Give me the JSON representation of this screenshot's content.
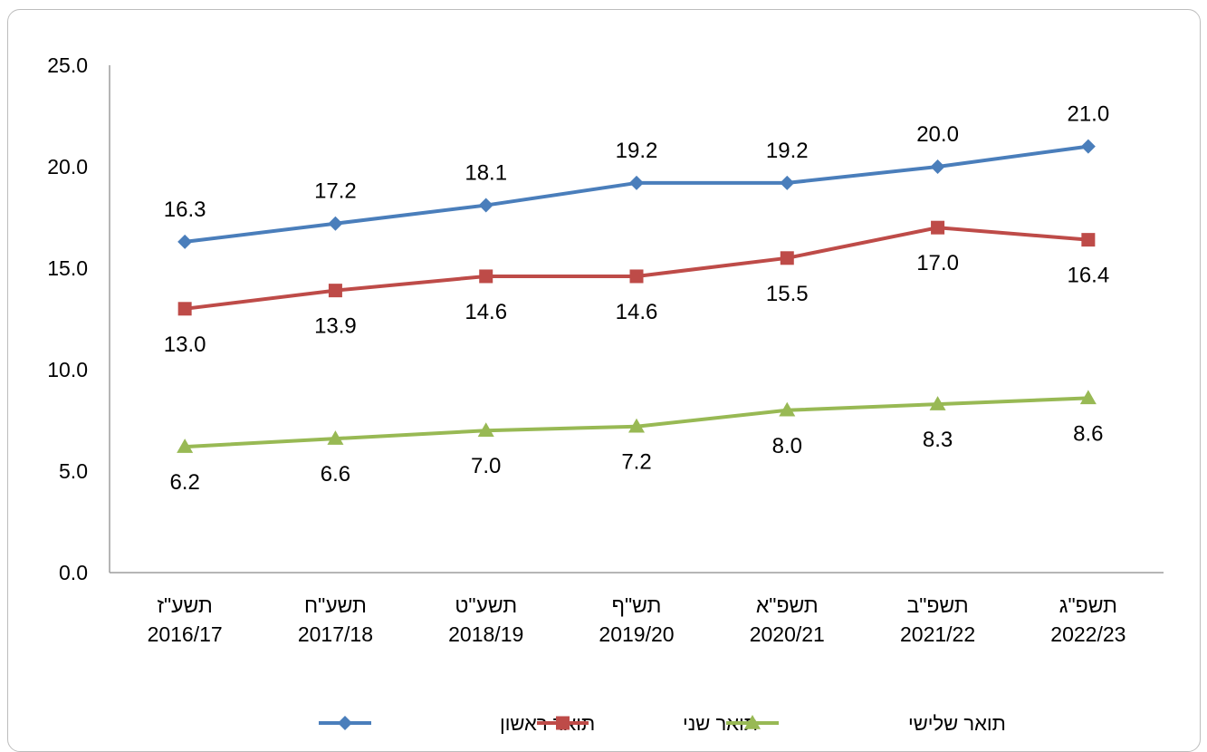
{
  "chart_data": {
    "type": "line",
    "categories": [
      {
        "hebrew": "תשע\"ז",
        "years": "2016/17"
      },
      {
        "hebrew": "תשע\"ח",
        "years": "2017/18"
      },
      {
        "hebrew": "תשע\"ט",
        "years": "2018/19"
      },
      {
        "hebrew": "תש\"ף",
        "years": "2019/20"
      },
      {
        "hebrew": "תשפ\"א",
        "years": "2020/21"
      },
      {
        "hebrew": "תשפ\"ב",
        "years": "2021/22"
      },
      {
        "hebrew": "תשפ\"ג",
        "years": "2022/23"
      }
    ],
    "ylim": [
      0,
      25
    ],
    "yticks": [
      "0.0",
      "5.0",
      "10.0",
      "15.0",
      "20.0",
      "25.0"
    ],
    "grid": false,
    "legend_position": "bottom",
    "series": [
      {
        "name": "תואר ראשון",
        "color": "#4a7ebb",
        "marker": "diamond",
        "label_position": "above",
        "values": [
          16.3,
          17.2,
          18.1,
          19.2,
          19.2,
          20.0,
          21.0
        ],
        "labels": [
          "16.3",
          "17.2",
          "18.1",
          "19.2",
          "19.2",
          "20.0",
          "21.0"
        ]
      },
      {
        "name": "תואר שני",
        "color": "#be4b48",
        "marker": "square",
        "label_position": "below",
        "values": [
          13.0,
          13.9,
          14.6,
          14.6,
          15.5,
          17.0,
          16.4
        ],
        "labels": [
          "13.0",
          "13.9",
          "14.6",
          "14.6",
          "15.5",
          "17.0",
          "16.4"
        ]
      },
      {
        "name": "תואר שלישי",
        "color": "#98b954",
        "marker": "triangle",
        "label_position": "below",
        "values": [
          6.2,
          6.6,
          7.0,
          7.2,
          8.0,
          8.3,
          8.6
        ],
        "labels": [
          "6.2",
          "6.6",
          "7.0",
          "7.2",
          "8.0",
          "8.3",
          "8.6"
        ]
      }
    ]
  }
}
